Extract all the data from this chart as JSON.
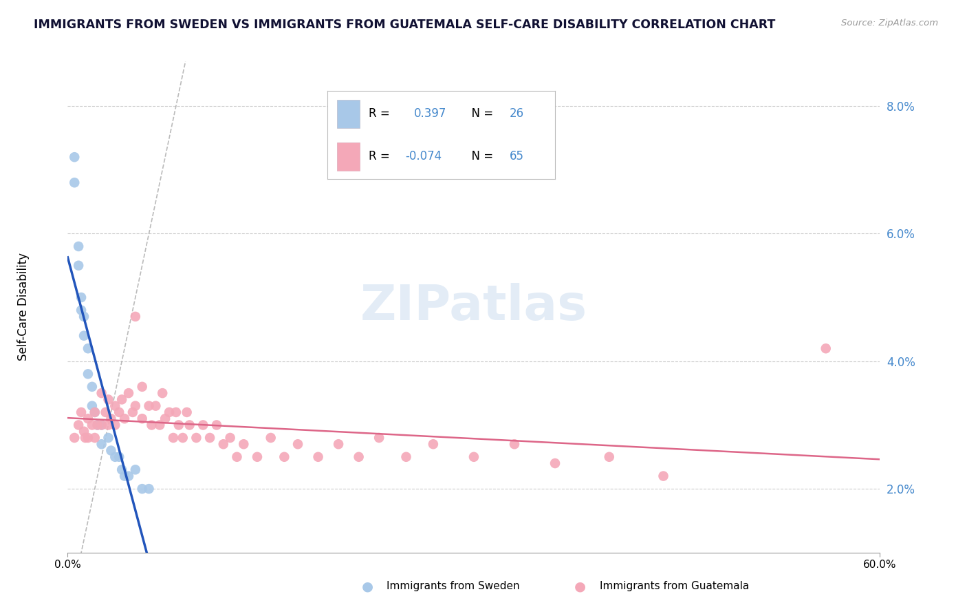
{
  "title": "IMMIGRANTS FROM SWEDEN VS IMMIGRANTS FROM GUATEMALA SELF-CARE DISABILITY CORRELATION CHART",
  "source_text": "Source: ZipAtlas.com",
  "ylabel": "Self-Care Disability",
  "xmin": 0.0,
  "xmax": 0.6,
  "ymin": 0.01,
  "ymax": 0.087,
  "yticks": [
    0.02,
    0.04,
    0.06,
    0.08
  ],
  "ytick_labels": [
    "2.0%",
    "4.0%",
    "6.0%",
    "8.0%"
  ],
  "color_sweden": "#a8c8e8",
  "color_guatemala": "#f4a8b8",
  "color_sweden_line": "#2255bb",
  "color_guatemala_line": "#dd6688",
  "color_diagonal": "#aaaaaa",
  "color_ytick": "#4488cc",
  "watermark_text": "ZIPatlas",
  "legend_line1_prefix": "R =  ",
  "legend_line1_value": "0.397",
  "legend_line1_n_prefix": "N = ",
  "legend_line1_n_value": "26",
  "legend_line2_prefix": "R = ",
  "legend_line2_value": "-0.074",
  "legend_line2_n_prefix": "N = ",
  "legend_line2_n_value": "65",
  "bottom_legend_sweden": "Immigrants from Sweden",
  "bottom_legend_guatemala": "Immigrants from Guatemala",
  "sweden_x": [
    0.005,
    0.005,
    0.008,
    0.008,
    0.01,
    0.01,
    0.012,
    0.012,
    0.015,
    0.015,
    0.018,
    0.018,
    0.02,
    0.022,
    0.025,
    0.025,
    0.03,
    0.032,
    0.035,
    0.038,
    0.04,
    0.042,
    0.045,
    0.05,
    0.055,
    0.06
  ],
  "sweden_y": [
    0.072,
    0.068,
    0.058,
    0.055,
    0.05,
    0.048,
    0.047,
    0.044,
    0.042,
    0.038,
    0.036,
    0.033,
    0.032,
    0.03,
    0.03,
    0.027,
    0.028,
    0.026,
    0.025,
    0.025,
    0.023,
    0.022,
    0.022,
    0.023,
    0.02,
    0.02
  ],
  "guatemala_x": [
    0.005,
    0.008,
    0.01,
    0.012,
    0.013,
    0.015,
    0.015,
    0.018,
    0.02,
    0.02,
    0.022,
    0.025,
    0.025,
    0.028,
    0.03,
    0.03,
    0.032,
    0.035,
    0.035,
    0.038,
    0.04,
    0.042,
    0.045,
    0.048,
    0.05,
    0.05,
    0.055,
    0.055,
    0.06,
    0.062,
    0.065,
    0.068,
    0.07,
    0.072,
    0.075,
    0.078,
    0.08,
    0.082,
    0.085,
    0.088,
    0.09,
    0.095,
    0.1,
    0.105,
    0.11,
    0.115,
    0.12,
    0.125,
    0.13,
    0.14,
    0.15,
    0.16,
    0.17,
    0.185,
    0.2,
    0.215,
    0.23,
    0.25,
    0.27,
    0.3,
    0.33,
    0.36,
    0.4,
    0.44,
    0.56
  ],
  "guatemala_y": [
    0.028,
    0.03,
    0.032,
    0.029,
    0.028,
    0.031,
    0.028,
    0.03,
    0.032,
    0.028,
    0.03,
    0.035,
    0.03,
    0.032,
    0.034,
    0.03,
    0.031,
    0.033,
    0.03,
    0.032,
    0.034,
    0.031,
    0.035,
    0.032,
    0.047,
    0.033,
    0.036,
    0.031,
    0.033,
    0.03,
    0.033,
    0.03,
    0.035,
    0.031,
    0.032,
    0.028,
    0.032,
    0.03,
    0.028,
    0.032,
    0.03,
    0.028,
    0.03,
    0.028,
    0.03,
    0.027,
    0.028,
    0.025,
    0.027,
    0.025,
    0.028,
    0.025,
    0.027,
    0.025,
    0.027,
    0.025,
    0.028,
    0.025,
    0.027,
    0.025,
    0.027,
    0.024,
    0.025,
    0.022,
    0.042
  ]
}
